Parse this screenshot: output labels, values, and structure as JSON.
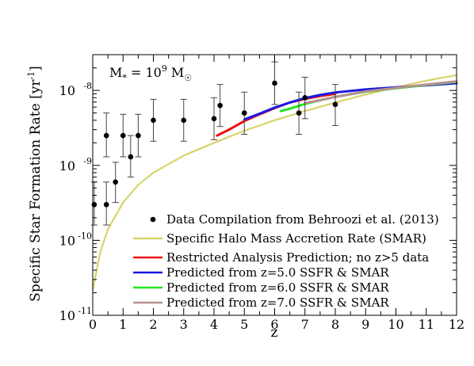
{
  "chart_data": {
    "type": "scatter",
    "xlabel": "z",
    "ylabel": "Specific Star Formation Rate [yr",
    "ylabel_sup": "-1",
    "ylabel_close": "]",
    "y_scale": "log",
    "xlim": [
      0,
      12
    ],
    "ylim": [
      1e-11,
      3e-08
    ],
    "x_ticks": [
      0,
      1,
      2,
      3,
      4,
      5,
      6,
      7,
      8,
      9,
      10,
      11,
      12
    ],
    "x_tick_labels": [
      "0",
      "1",
      "2",
      "3",
      "4",
      "5",
      "6",
      "7",
      "8",
      "9",
      "10",
      "11",
      "12"
    ],
    "y_ticks": [
      1e-11,
      1e-10,
      1e-09,
      1e-08
    ],
    "y_tick_labels": [
      {
        "base": "10",
        "exp": "-11"
      },
      {
        "base": "10",
        "exp": "-10"
      },
      {
        "base": "10",
        "exp": "-9"
      },
      {
        "base": "10",
        "exp": "-8"
      }
    ],
    "annotation": {
      "m": "M",
      "msub": "*",
      "eq": " = 10",
      "exp": "9",
      "msun": " M",
      "msun_sub": "☉"
    },
    "legend_position": "bottom-right",
    "colors": {
      "data": "#000000",
      "smar": "#d8d36a",
      "restricted": "#ee1111",
      "z5": "#1a1ae0",
      "z6": "#22e622",
      "z7": "#b89090"
    },
    "data_points": {
      "name": "Data Compilation from Behroozi et al. (2013)",
      "points": [
        {
          "x": 0.05,
          "y": 3e-10,
          "lo": 1.6e-10,
          "hi": 6e-10
        },
        {
          "x": 0.45,
          "y": 3e-10,
          "lo": 1.6e-10,
          "hi": 6e-10
        },
        {
          "x": 0.45,
          "y": 2.5e-09,
          "lo": 1.3e-09,
          "hi": 5e-09
        },
        {
          "x": 0.75,
          "y": 6e-10,
          "lo": 3.2e-10,
          "hi": 1.1e-09
        },
        {
          "x": 1.0,
          "y": 2.5e-09,
          "lo": 1.3e-09,
          "hi": 4.8e-09
        },
        {
          "x": 1.25,
          "y": 1.3e-09,
          "lo": 7e-10,
          "hi": 2.5e-09
        },
        {
          "x": 1.5,
          "y": 2.5e-09,
          "lo": 1.3e-09,
          "hi": 4.8e-09
        },
        {
          "x": 2.0,
          "y": 4e-09,
          "lo": 2.1e-09,
          "hi": 7.6e-09
        },
        {
          "x": 3.0,
          "y": 4e-09,
          "lo": 2.1e-09,
          "hi": 7.6e-09
        },
        {
          "x": 4.0,
          "y": 4.2e-09,
          "lo": 2.2e-09,
          "hi": 8e-09
        },
        {
          "x": 4.2,
          "y": 6.3e-09,
          "lo": 3.3e-09,
          "hi": 1.2e-08
        },
        {
          "x": 5.0,
          "y": 5e-09,
          "lo": 2.6e-09,
          "hi": 9.5e-09
        },
        {
          "x": 6.0,
          "y": 1.25e-08,
          "lo": 6.5e-09,
          "hi": 2.4e-08
        },
        {
          "x": 6.8,
          "y": 5e-09,
          "lo": 2.6e-09,
          "hi": 9.5e-09
        },
        {
          "x": 7.0,
          "y": 8e-09,
          "lo": 4.2e-09,
          "hi": 1.5e-08
        },
        {
          "x": 8.0,
          "y": 6.5e-09,
          "lo": 3.4e-09,
          "hi": 1.2e-08
        }
      ]
    },
    "series": [
      {
        "name": "Specific Halo Mass Accretion Rate (SMAR)",
        "color_key": "smar",
        "x": [
          0,
          0.25,
          0.5,
          1,
          1.5,
          2,
          3,
          4,
          5,
          6,
          7,
          8,
          9,
          10,
          11,
          12
        ],
        "y": [
          2.2e-11,
          7e-11,
          1.4e-10,
          3.2e-10,
          5.5e-10,
          8e-10,
          1.35e-09,
          2e-09,
          2.9e-09,
          4e-09,
          5.3e-09,
          6.9e-09,
          8.8e-09,
          1.1e-08,
          1.35e-08,
          1.6e-08
        ]
      },
      {
        "name": "Restricted Analysis Prediction; no z>5 data",
        "color_key": "restricted",
        "x": [
          4.1,
          4.5,
          5.0,
          5.5,
          6.0,
          6.5,
          7.0,
          7.5,
          8.0
        ],
        "y": [
          2.5e-09,
          3e-09,
          3.9e-09,
          4.8e-09,
          5.8e-09,
          6.9e-09,
          7.7e-09,
          8.4e-09,
          9e-09
        ]
      },
      {
        "name": "Predicted from z=5.0 SSFR & SMAR",
        "color_key": "z5",
        "x": [
          5.0,
          5.5,
          6.0,
          6.5,
          7.0,
          7.5,
          8.0,
          9.0,
          10.0,
          11.0,
          12.0
        ],
        "y": [
          4.1e-09,
          4.9e-09,
          5.9e-09,
          6.9e-09,
          7.9e-09,
          8.7e-09,
          9.4e-09,
          1.03e-08,
          1.1e-08,
          1.17e-08,
          1.25e-08
        ]
      },
      {
        "name": "Predicted from z=6.0 SSFR & SMAR",
        "color_key": "z6",
        "x": [
          6.2,
          6.5,
          7.0,
          7.5,
          8.0,
          9.0,
          10.0,
          11.0,
          12.0
        ],
        "y": [
          5.3e-09,
          5.7e-09,
          6.6e-09,
          7.4e-09,
          8.2e-09,
          9.6e-09,
          1.07e-08,
          1.18e-08,
          1.3e-08
        ]
      },
      {
        "name": "Predicted from z=7.0 SSFR & SMAR",
        "color_key": "z7",
        "x": [
          7.0,
          7.5,
          8.0,
          9.0,
          10.0,
          11.0,
          12.0
        ],
        "y": [
          6.8e-09,
          7.4e-09,
          8.2e-09,
          9.7e-09,
          1.08e-08,
          1.2e-08,
          1.32e-08
        ]
      }
    ]
  }
}
